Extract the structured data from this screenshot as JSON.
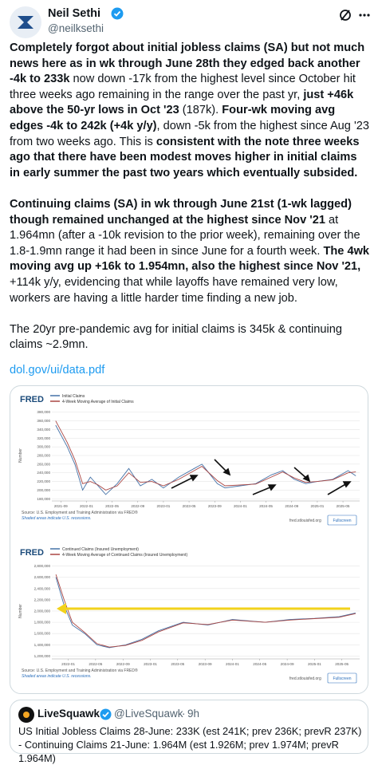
{
  "header": {
    "name": "Neil Sethi",
    "handle": "@neilksethi"
  },
  "paragraphs": [
    {
      "runs": [
        {
          "text": "Completely forgot about initial jobless claims (SA) but not much news here as in wk through June 28th they edged back another -4k to 233k",
          "bold": true
        },
        {
          "text": " now down -17k from the highest level since October hit three weeks ago remaining in the range over the past yr, ",
          "bold": false
        },
        {
          "text": "just +46k above the 50-yr lows in Oct '23",
          "bold": true
        },
        {
          "text": " (187k). ",
          "bold": false
        },
        {
          "text": "Four-wk moving avg edges -4k to 242k (+4k y/y)",
          "bold": true
        },
        {
          "text": ", down -5k from the highest since Aug '23 from two weeks ago. This is ",
          "bold": false
        },
        {
          "text": "consistent with the note three weeks ago that there have been modest moves higher in initial claims in early summer the past two years which eventually subsided.",
          "bold": true
        }
      ]
    },
    {
      "runs": [
        {
          "text": "Continuing claims (SA) in wk through June 21st (1-wk lagged) though remained unchanged at the highest since Nov '21",
          "bold": true
        },
        {
          "text": " at 1.964mn (after a -10k revision to the prior week), remaining over the 1.8-1.9mn range it had been in since June for a fourth week. ",
          "bold": false
        },
        {
          "text": "The 4wk moving avg up +16k to 1.954mn, also the highest since Nov '21,",
          "bold": true
        },
        {
          "text": " +114k y/y, evidencing that while layoffs have remained very low, workers are having a little harder time finding a new job.",
          "bold": false
        }
      ]
    },
    {
      "runs": [
        {
          "text": "The 20yr pre-pandemic avg for initial claims is 345k & continuing claims ~2.9mn.",
          "bold": false
        }
      ]
    }
  ],
  "link": "dol.gov/ui/data.pdf",
  "chart_data": [
    {
      "type": "line",
      "logo": "FRED",
      "y_label": "Number",
      "source": "Source: U.S. Employment and Training Administration via FRED®",
      "note": "Shaded areas indicate U.S. recessions.",
      "site": "fred.stlouisfed.org",
      "button": "Fullscreen",
      "x": [
        2021.6,
        2021.75,
        2021.85,
        2021.95,
        2022.05,
        2022.15,
        2022.25,
        2022.4,
        2022.55,
        2022.7,
        2022.85,
        2023.0,
        2023.2,
        2023.4,
        2023.5,
        2023.7,
        2023.8,
        2024.0,
        2024.2,
        2024.4,
        2024.55,
        2024.7,
        2024.85,
        2025.0,
        2025.2,
        2025.4,
        2025.5
      ],
      "series": [
        {
          "name": "Initial Claims",
          "color": "#4572a7",
          "values": [
            350000,
            300000,
            260000,
            200000,
            230000,
            210000,
            190000,
            215000,
            250000,
            210000,
            225000,
            205000,
            230000,
            250000,
            260000,
            215000,
            205000,
            210000,
            215000,
            235000,
            245000,
            225000,
            215000,
            220000,
            225000,
            245000,
            233000
          ]
        },
        {
          "name": "4-Week Moving Average of Initial Claims",
          "color": "#aa4643",
          "values": [
            360000,
            310000,
            270000,
            215000,
            220000,
            212000,
            200000,
            210000,
            240000,
            218000,
            220000,
            210000,
            225000,
            245000,
            255000,
            222000,
            210000,
            212000,
            214000,
            230000,
            242000,
            228000,
            218000,
            220000,
            224000,
            240000,
            242000
          ]
        }
      ],
      "xlim": [
        2021.55,
        2025.55
      ],
      "xticks": [
        {
          "value": 2021.667,
          "label": "2021-09"
        },
        {
          "value": 2022.0,
          "label": "2022-01"
        },
        {
          "value": 2022.333,
          "label": "2022-05"
        },
        {
          "value": 2022.667,
          "label": "2022-09"
        },
        {
          "value": 2023.0,
          "label": "2023-01"
        },
        {
          "value": 2023.333,
          "label": "2023-05"
        },
        {
          "value": 2023.667,
          "label": "2023-09"
        },
        {
          "value": 2024.0,
          "label": "2024-01"
        },
        {
          "value": 2024.333,
          "label": "2024-05"
        },
        {
          "value": 2024.667,
          "label": "2024-09"
        },
        {
          "value": 2025.0,
          "label": "2025-01"
        },
        {
          "value": 2025.333,
          "label": "2025-05"
        }
      ],
      "ylim": [
        175000,
        385000
      ],
      "yticks": [
        {
          "value": 180000,
          "label": "180,000"
        },
        {
          "value": 200000,
          "label": "200,000"
        },
        {
          "value": 220000,
          "label": "220,000"
        },
        {
          "value": 240000,
          "label": "240,000"
        },
        {
          "value": 260000,
          "label": "260,000"
        },
        {
          "value": 280000,
          "label": "280,000"
        },
        {
          "value": 300000,
          "label": "300,000"
        },
        {
          "value": 320000,
          "label": "320,000"
        },
        {
          "value": 340000,
          "label": "340,000"
        },
        {
          "value": 360000,
          "label": "360,000"
        },
        {
          "value": 380000,
          "label": "380,000"
        }
      ],
      "grid": true
    },
    {
      "type": "line",
      "logo": "FRED",
      "y_label": "Number",
      "source": "Source: U.S. Employment and Training Administration via FRED®",
      "note": "Shaded areas indicate U.S. recessions.",
      "site": "fred.stlouisfed.org",
      "button": "Fullscreen",
      "x": [
        2021.85,
        2021.95,
        2022.05,
        2022.2,
        2022.35,
        2022.5,
        2022.7,
        2022.9,
        2023.1,
        2023.4,
        2023.7,
        2024.0,
        2024.4,
        2024.7,
        2025.0,
        2025.3,
        2025.5
      ],
      "series": [
        {
          "name": "Continued Claims (Insured Unemployment)",
          "color": "#4572a7",
          "values": [
            2600000,
            2100000,
            1750000,
            1600000,
            1400000,
            1350000,
            1400000,
            1500000,
            1650000,
            1800000,
            1750000,
            1850000,
            1800000,
            1850000,
            1870000,
            1900000,
            1964000
          ]
        },
        {
          "name": "4-Week Moving Average of Continued Claims (Insured Unemployment)",
          "color": "#aa4643",
          "values": [
            2650000,
            2200000,
            1800000,
            1620000,
            1420000,
            1360000,
            1390000,
            1480000,
            1630000,
            1790000,
            1760000,
            1840000,
            1800000,
            1840000,
            1865000,
            1890000,
            1954000
          ]
        }
      ],
      "xlim": [
        2021.8,
        2025.55
      ],
      "xticks": [
        {
          "value": 2022.0,
          "label": "2022-01"
        },
        {
          "value": 2022.333,
          "label": "2022-05"
        },
        {
          "value": 2022.667,
          "label": "2022-09"
        },
        {
          "value": 2023.0,
          "label": "2023-01"
        },
        {
          "value": 2023.333,
          "label": "2023-05"
        },
        {
          "value": 2023.667,
          "label": "2023-09"
        },
        {
          "value": 2024.0,
          "label": "2024-01"
        },
        {
          "value": 2024.333,
          "label": "2024-05"
        },
        {
          "value": 2024.667,
          "label": "2024-09"
        },
        {
          "value": 2025.0,
          "label": "2025-01"
        },
        {
          "value": 2025.333,
          "label": "2025-05"
        }
      ],
      "ylim": [
        1150000,
        2850000
      ],
      "yticks": [
        {
          "value": 1200000,
          "label": "1,200,000"
        },
        {
          "value": 1400000,
          "label": "1,400,000"
        },
        {
          "value": 1600000,
          "label": "1,600,000"
        },
        {
          "value": 1800000,
          "label": "1,800,000"
        },
        {
          "value": 2000000,
          "label": "2,000,000"
        },
        {
          "value": 2200000,
          "label": "2,200,000"
        },
        {
          "value": 2400000,
          "label": "2,400,000"
        },
        {
          "value": 2600000,
          "label": "2,600,000"
        },
        {
          "value": 2800000,
          "label": "2,800,000"
        }
      ],
      "grid": true
    }
  ],
  "quote": {
    "name": "LiveSquawk",
    "handle": "@LiveSquawk",
    "separator": "·",
    "time": "9h",
    "lines": [
      "US Initial Jobless Claims 28-June: 233K (est 241K; prev 236K; prevR 237K)",
      "- Continuing Claims 21-June: 1.964M (est 1.926M; prev 1.974M; prevR 1.964M)"
    ]
  }
}
